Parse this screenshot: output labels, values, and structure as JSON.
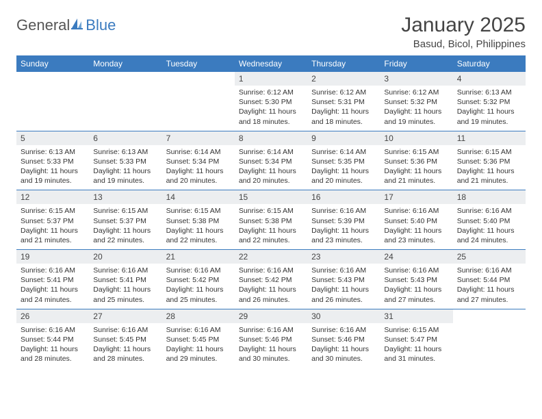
{
  "branding": {
    "text1": "General",
    "text2": "Blue",
    "icon_color": "#3b7bbf"
  },
  "title": "January 2025",
  "location": "Basud, Bicol, Philippines",
  "colors": {
    "header_bg": "#3b7bbf",
    "header_fg": "#ffffff",
    "daynum_bg": "#eceef0",
    "text": "#333333",
    "rule": "#3b7bbf"
  },
  "weekdays": [
    "Sunday",
    "Monday",
    "Tuesday",
    "Wednesday",
    "Thursday",
    "Friday",
    "Saturday"
  ],
  "weeks": [
    [
      {
        "n": "",
        "lines": []
      },
      {
        "n": "",
        "lines": []
      },
      {
        "n": "",
        "lines": []
      },
      {
        "n": "1",
        "lines": [
          "Sunrise: 6:12 AM",
          "Sunset: 5:30 PM",
          "Daylight: 11 hours and 18 minutes."
        ]
      },
      {
        "n": "2",
        "lines": [
          "Sunrise: 6:12 AM",
          "Sunset: 5:31 PM",
          "Daylight: 11 hours and 18 minutes."
        ]
      },
      {
        "n": "3",
        "lines": [
          "Sunrise: 6:12 AM",
          "Sunset: 5:32 PM",
          "Daylight: 11 hours and 19 minutes."
        ]
      },
      {
        "n": "4",
        "lines": [
          "Sunrise: 6:13 AM",
          "Sunset: 5:32 PM",
          "Daylight: 11 hours and 19 minutes."
        ]
      }
    ],
    [
      {
        "n": "5",
        "lines": [
          "Sunrise: 6:13 AM",
          "Sunset: 5:33 PM",
          "Daylight: 11 hours and 19 minutes."
        ]
      },
      {
        "n": "6",
        "lines": [
          "Sunrise: 6:13 AM",
          "Sunset: 5:33 PM",
          "Daylight: 11 hours and 19 minutes."
        ]
      },
      {
        "n": "7",
        "lines": [
          "Sunrise: 6:14 AM",
          "Sunset: 5:34 PM",
          "Daylight: 11 hours and 20 minutes."
        ]
      },
      {
        "n": "8",
        "lines": [
          "Sunrise: 6:14 AM",
          "Sunset: 5:34 PM",
          "Daylight: 11 hours and 20 minutes."
        ]
      },
      {
        "n": "9",
        "lines": [
          "Sunrise: 6:14 AM",
          "Sunset: 5:35 PM",
          "Daylight: 11 hours and 20 minutes."
        ]
      },
      {
        "n": "10",
        "lines": [
          "Sunrise: 6:15 AM",
          "Sunset: 5:36 PM",
          "Daylight: 11 hours and 21 minutes."
        ]
      },
      {
        "n": "11",
        "lines": [
          "Sunrise: 6:15 AM",
          "Sunset: 5:36 PM",
          "Daylight: 11 hours and 21 minutes."
        ]
      }
    ],
    [
      {
        "n": "12",
        "lines": [
          "Sunrise: 6:15 AM",
          "Sunset: 5:37 PM",
          "Daylight: 11 hours and 21 minutes."
        ]
      },
      {
        "n": "13",
        "lines": [
          "Sunrise: 6:15 AM",
          "Sunset: 5:37 PM",
          "Daylight: 11 hours and 22 minutes."
        ]
      },
      {
        "n": "14",
        "lines": [
          "Sunrise: 6:15 AM",
          "Sunset: 5:38 PM",
          "Daylight: 11 hours and 22 minutes."
        ]
      },
      {
        "n": "15",
        "lines": [
          "Sunrise: 6:15 AM",
          "Sunset: 5:38 PM",
          "Daylight: 11 hours and 22 minutes."
        ]
      },
      {
        "n": "16",
        "lines": [
          "Sunrise: 6:16 AM",
          "Sunset: 5:39 PM",
          "Daylight: 11 hours and 23 minutes."
        ]
      },
      {
        "n": "17",
        "lines": [
          "Sunrise: 6:16 AM",
          "Sunset: 5:40 PM",
          "Daylight: 11 hours and 23 minutes."
        ]
      },
      {
        "n": "18",
        "lines": [
          "Sunrise: 6:16 AM",
          "Sunset: 5:40 PM",
          "Daylight: 11 hours and 24 minutes."
        ]
      }
    ],
    [
      {
        "n": "19",
        "lines": [
          "Sunrise: 6:16 AM",
          "Sunset: 5:41 PM",
          "Daylight: 11 hours and 24 minutes."
        ]
      },
      {
        "n": "20",
        "lines": [
          "Sunrise: 6:16 AM",
          "Sunset: 5:41 PM",
          "Daylight: 11 hours and 25 minutes."
        ]
      },
      {
        "n": "21",
        "lines": [
          "Sunrise: 6:16 AM",
          "Sunset: 5:42 PM",
          "Daylight: 11 hours and 25 minutes."
        ]
      },
      {
        "n": "22",
        "lines": [
          "Sunrise: 6:16 AM",
          "Sunset: 5:42 PM",
          "Daylight: 11 hours and 26 minutes."
        ]
      },
      {
        "n": "23",
        "lines": [
          "Sunrise: 6:16 AM",
          "Sunset: 5:43 PM",
          "Daylight: 11 hours and 26 minutes."
        ]
      },
      {
        "n": "24",
        "lines": [
          "Sunrise: 6:16 AM",
          "Sunset: 5:43 PM",
          "Daylight: 11 hours and 27 minutes."
        ]
      },
      {
        "n": "25",
        "lines": [
          "Sunrise: 6:16 AM",
          "Sunset: 5:44 PM",
          "Daylight: 11 hours and 27 minutes."
        ]
      }
    ],
    [
      {
        "n": "26",
        "lines": [
          "Sunrise: 6:16 AM",
          "Sunset: 5:44 PM",
          "Daylight: 11 hours and 28 minutes."
        ]
      },
      {
        "n": "27",
        "lines": [
          "Sunrise: 6:16 AM",
          "Sunset: 5:45 PM",
          "Daylight: 11 hours and 28 minutes."
        ]
      },
      {
        "n": "28",
        "lines": [
          "Sunrise: 6:16 AM",
          "Sunset: 5:45 PM",
          "Daylight: 11 hours and 29 minutes."
        ]
      },
      {
        "n": "29",
        "lines": [
          "Sunrise: 6:16 AM",
          "Sunset: 5:46 PM",
          "Daylight: 11 hours and 30 minutes."
        ]
      },
      {
        "n": "30",
        "lines": [
          "Sunrise: 6:16 AM",
          "Sunset: 5:46 PM",
          "Daylight: 11 hours and 30 minutes."
        ]
      },
      {
        "n": "31",
        "lines": [
          "Sunrise: 6:15 AM",
          "Sunset: 5:47 PM",
          "Daylight: 11 hours and 31 minutes."
        ]
      },
      {
        "n": "",
        "lines": []
      }
    ]
  ]
}
